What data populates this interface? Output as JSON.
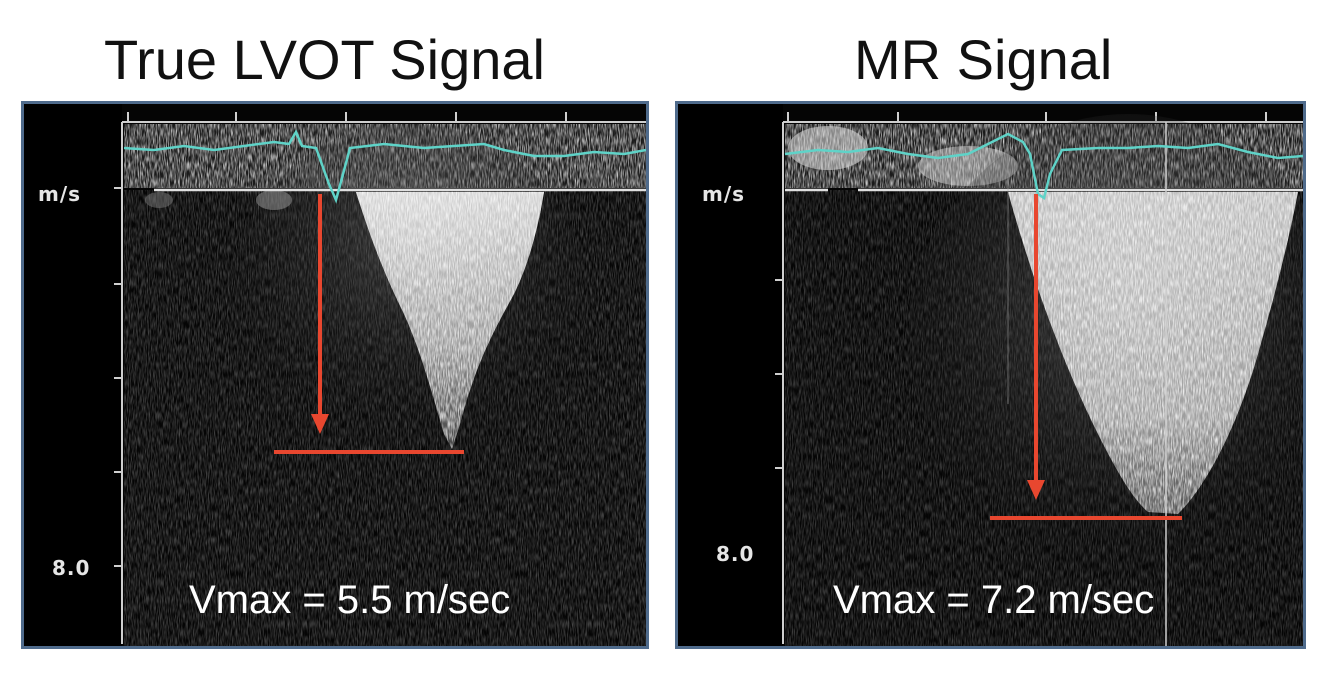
{
  "panels": [
    {
      "title": "True LVOT Signal",
      "unit_label": "m/s",
      "scale_label": "8.0",
      "vmax_text": "Vmax = 5.5 m/sec"
    },
    {
      "title": "MR Signal",
      "unit_label": "m/s",
      "scale_label": "8.0",
      "vmax_text": "Vmax = 7.2 m/sec"
    }
  ],
  "colors": {
    "panel_border": "#4f6b8c",
    "ecg_trace": "#5fd3c8",
    "arrow": "#e8472f",
    "spectrum": "#f0f0f0"
  }
}
